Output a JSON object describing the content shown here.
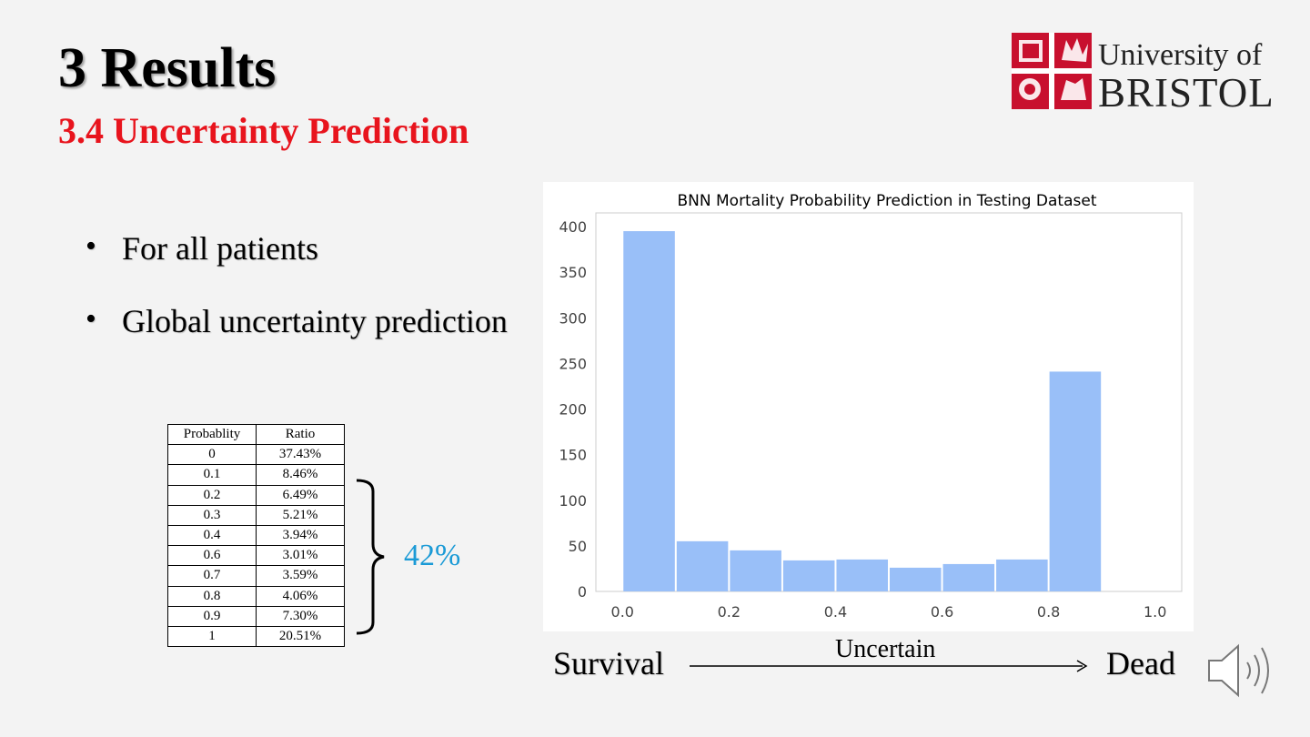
{
  "slide": {
    "title": "3 Results",
    "subtitle": "3.4 Uncertainty Prediction"
  },
  "logo": {
    "line1": "University of",
    "line2": "BRISTOL"
  },
  "bullets": [
    "For all patients",
    "Global uncertainty prediction"
  ],
  "table": {
    "headers": [
      "Probablity",
      "Ratio"
    ],
    "rows": [
      [
        "0",
        "37.43%"
      ],
      [
        "0.1",
        "8.46%"
      ],
      [
        "0.2",
        "6.49%"
      ],
      [
        "0.3",
        "5.21%"
      ],
      [
        "0.4",
        "3.94%"
      ],
      [
        "0.6",
        "3.01%"
      ],
      [
        "0.7",
        "3.59%"
      ],
      [
        "0.8",
        "4.06%"
      ],
      [
        "0.9",
        "7.30%"
      ],
      [
        "1",
        "20.51%"
      ]
    ]
  },
  "brace_label": "42%",
  "scale": {
    "left": "Survival",
    "middle": "Uncertain",
    "right": "Dead"
  },
  "colors": {
    "title_red": "#e8141d",
    "bar_fill": "#99bff8",
    "brace_label": "#1a9ad6",
    "logo_red": "#c8102e"
  },
  "icons": {
    "speaker": "speaker-icon"
  },
  "chart_data": {
    "type": "bar",
    "title": "BNN Mortality Probability Prediction in Testing Dataset",
    "xlabel": "",
    "ylabel": "",
    "bins": [
      {
        "from": 0.0,
        "to": 0.1,
        "value": 395
      },
      {
        "from": 0.1,
        "to": 0.2,
        "value": 55
      },
      {
        "from": 0.2,
        "to": 0.3,
        "value": 45
      },
      {
        "from": 0.3,
        "to": 0.4,
        "value": 34
      },
      {
        "from": 0.4,
        "to": 0.5,
        "value": 35
      },
      {
        "from": 0.5,
        "to": 0.6,
        "value": 26
      },
      {
        "from": 0.6,
        "to": 0.7,
        "value": 30
      },
      {
        "from": 0.7,
        "to": 0.8,
        "value": 35
      },
      {
        "from": 0.8,
        "to": 0.9,
        "value": 241
      }
    ],
    "xticks": [
      "0.0",
      "0.2",
      "0.4",
      "0.6",
      "0.8",
      "1.0"
    ],
    "yticks": [
      "0",
      "50",
      "100",
      "150",
      "200",
      "250",
      "300",
      "350",
      "400"
    ],
    "xlim": [
      -0.05,
      1.05
    ],
    "ylim": [
      0,
      415
    ],
    "grid": false,
    "legend": "none"
  }
}
